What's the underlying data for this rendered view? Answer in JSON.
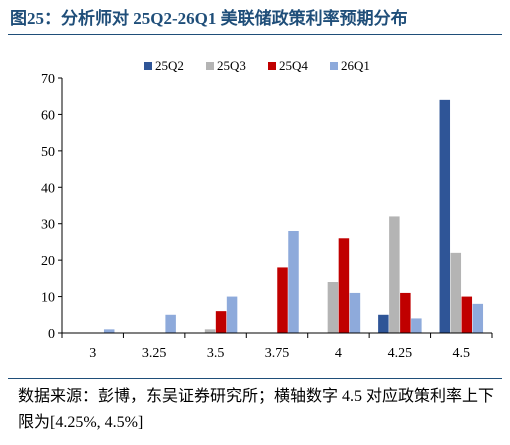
{
  "header": {
    "title": "图25：分析师对 25Q2-26Q1 美联储政策利率预期分布"
  },
  "footer": {
    "source": "数据来源：彭博，东吴证券研究所；横轴数字 4.5 对应政策利率上下限为[4.25%, 4.5%]"
  },
  "chart_data": {
    "type": "bar",
    "categories": [
      "3",
      "3.25",
      "3.5",
      "3.75",
      "4",
      "4.25",
      "4.5"
    ],
    "ylim": [
      0,
      70
    ],
    "yticks": [
      0,
      10,
      20,
      30,
      40,
      50,
      60,
      70
    ],
    "legend_position": "top",
    "grid": false,
    "series": [
      {
        "name": "25Q2",
        "color": "#2f5597",
        "values": [
          0,
          0,
          0,
          0,
          0,
          5,
          64
        ]
      },
      {
        "name": "25Q3",
        "color": "#b4b4b4",
        "values": [
          0,
          0,
          1,
          0,
          14,
          32,
          22
        ]
      },
      {
        "name": "25Q4",
        "color": "#c00000",
        "values": [
          0,
          0,
          6,
          18,
          26,
          11,
          10
        ]
      },
      {
        "name": "26Q1",
        "color": "#8eaadb",
        "values": [
          1,
          5,
          10,
          28,
          11,
          4,
          8
        ]
      }
    ]
  }
}
